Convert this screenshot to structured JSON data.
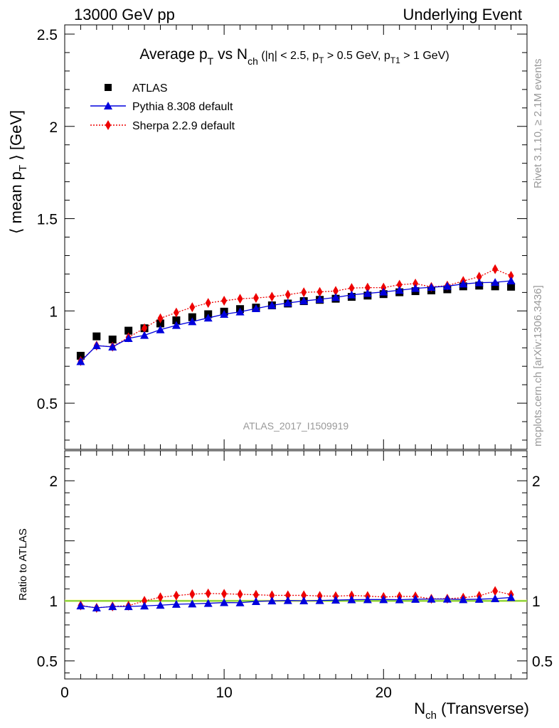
{
  "header": {
    "left": "13000 GeV pp",
    "right": "Underlying Event"
  },
  "side_labels": {
    "rivet": "Rivet 3.1.10, ≥ 2.1M events",
    "mcplots": "mcplots.cern.ch [arXiv:1306.3436]"
  },
  "chart_data": [
    {
      "type": "scatter",
      "title": "Average p_T vs N_ch (|η| < 2.5, p_T > 0.5 GeV, p_T1 > 1 GeV)",
      "ylabel": "⟨ mean p_T ⟩ [GeV]",
      "xlabel": "N_ch (Transverse)",
      "watermark": "ATLAS_2017_I1509919",
      "xlim": [
        0,
        29
      ],
      "ylim": [
        0.25,
        2.55
      ],
      "yticks": [
        0.5,
        1,
        1.5,
        2,
        2.5
      ],
      "ytick_labels": [
        "0.5",
        "1",
        "1.5",
        "2",
        "2.5"
      ],
      "legend_position": "top-left",
      "x": [
        1,
        2,
        3,
        4,
        5,
        6,
        7,
        8,
        9,
        10,
        11,
        12,
        13,
        14,
        15,
        16,
        17,
        18,
        19,
        20,
        21,
        22,
        23,
        24,
        25,
        26,
        27,
        28
      ],
      "series": [
        {
          "name": "ATLAS",
          "color": "#000000",
          "marker": "square",
          "line": "none",
          "values": [
            0.757,
            0.862,
            0.845,
            0.893,
            0.906,
            0.932,
            0.949,
            0.966,
            0.982,
            0.996,
            1.01,
            1.018,
            1.03,
            1.04,
            1.053,
            1.06,
            1.066,
            1.076,
            1.083,
            1.091,
            1.101,
            1.107,
            1.111,
            1.117,
            1.133,
            1.137,
            1.133,
            1.131
          ]
        },
        {
          "name": "Pythia 8.308 default",
          "color": "#0000dd",
          "marker": "triangle",
          "line": "solid",
          "values": [
            0.726,
            0.812,
            0.805,
            0.851,
            0.868,
            0.898,
            0.922,
            0.942,
            0.962,
            0.982,
            0.995,
            1.013,
            1.03,
            1.043,
            1.054,
            1.063,
            1.073,
            1.087,
            1.095,
            1.103,
            1.112,
            1.122,
            1.128,
            1.134,
            1.146,
            1.153,
            1.155,
            1.163
          ]
        },
        {
          "name": "Sherpa 2.2.9 default",
          "color": "#ee0000",
          "marker": "diamond",
          "line": "dotted",
          "values": [
            0.728,
            0.812,
            0.806,
            0.857,
            0.906,
            0.96,
            0.991,
            1.02,
            1.043,
            1.055,
            1.066,
            1.07,
            1.077,
            1.088,
            1.101,
            1.103,
            1.108,
            1.124,
            1.126,
            1.126,
            1.142,
            1.148,
            1.13,
            1.137,
            1.162,
            1.185,
            1.226,
            1.19
          ]
        }
      ]
    },
    {
      "type": "scatter",
      "ylabel": "Ratio to ATLAS",
      "xlim": [
        0,
        29
      ],
      "ylim": [
        0.35,
        2.25
      ],
      "yticks": [
        0.5,
        1,
        2
      ],
      "ytick_labels": [
        "0.5",
        "1",
        "2"
      ],
      "xticks": [
        0,
        10,
        20
      ],
      "xtick_labels": [
        "0",
        "10",
        "20"
      ],
      "reference_line": 1,
      "x": [
        1,
        2,
        3,
        4,
        5,
        6,
        7,
        8,
        9,
        10,
        11,
        12,
        13,
        14,
        15,
        16,
        17,
        18,
        19,
        20,
        21,
        22,
        23,
        24,
        25,
        26,
        27,
        28
      ],
      "series": [
        {
          "name": "Pythia 8.308 default",
          "color": "#0000dd",
          "marker": "triangle",
          "line": "solid",
          "values": [
            0.959,
            0.942,
            0.953,
            0.953,
            0.958,
            0.964,
            0.972,
            0.975,
            0.98,
            0.986,
            0.985,
            0.995,
            1.0,
            1.003,
            1.001,
            1.003,
            1.007,
            1.01,
            1.011,
            1.011,
            1.01,
            1.014,
            1.015,
            1.015,
            1.011,
            1.014,
            1.019,
            1.028
          ]
        },
        {
          "name": "Sherpa 2.2.9 default",
          "color": "#ee0000",
          "marker": "diamond",
          "line": "dotted",
          "values": [
            0.962,
            0.942,
            0.954,
            0.96,
            1.0,
            1.03,
            1.044,
            1.056,
            1.062,
            1.059,
            1.055,
            1.051,
            1.046,
            1.046,
            1.046,
            1.041,
            1.039,
            1.045,
            1.04,
            1.032,
            1.037,
            1.037,
            1.017,
            1.018,
            1.026,
            1.042,
            1.082,
            1.052
          ]
        }
      ]
    }
  ]
}
